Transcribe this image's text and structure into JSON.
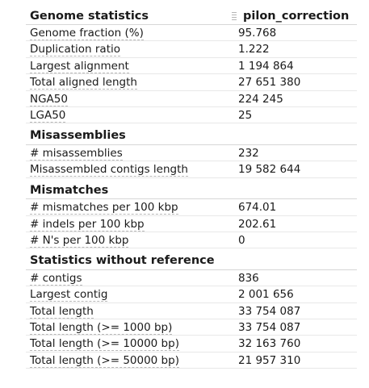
{
  "header": {
    "title": "Genome statistics",
    "column_label": "pilon_correction"
  },
  "sections": [
    {
      "rows": [
        {
          "metric": "Genome fraction (%)",
          "value": "95.768"
        },
        {
          "metric": "Duplication ratio",
          "value": "1.222"
        },
        {
          "metric": "Largest alignment",
          "value": "1 194 864"
        },
        {
          "metric": "Total aligned length",
          "value": "27 651 380"
        },
        {
          "metric": "NGA50",
          "value": "224 245"
        },
        {
          "metric": "LGA50",
          "value": "25"
        }
      ]
    },
    {
      "title": "Misassemblies",
      "rows": [
        {
          "metric": "# misassemblies",
          "value": "232"
        },
        {
          "metric": "Misassembled contigs length",
          "value": "19 582 644"
        }
      ]
    },
    {
      "title": "Mismatches",
      "rows": [
        {
          "metric": "# mismatches per 100 kbp",
          "value": "674.01"
        },
        {
          "metric": "# indels per 100 kbp",
          "value": "202.61"
        },
        {
          "metric": "# N's per 100 kbp",
          "value": "0"
        }
      ]
    },
    {
      "title": "Statistics without reference",
      "rows": [
        {
          "metric": "# contigs",
          "value": "836"
        },
        {
          "metric": "Largest contig",
          "value": "2 001 656"
        },
        {
          "metric": "Total length",
          "value": "33 754 087"
        },
        {
          "metric": "Total length (>= 1000 bp)",
          "value": "33 754 087"
        },
        {
          "metric": "Total length (>= 10000 bp)",
          "value": "32 163 760"
        },
        {
          "metric": "Total length (>= 50000 bp)",
          "value": "21 957 310"
        }
      ]
    }
  ]
}
